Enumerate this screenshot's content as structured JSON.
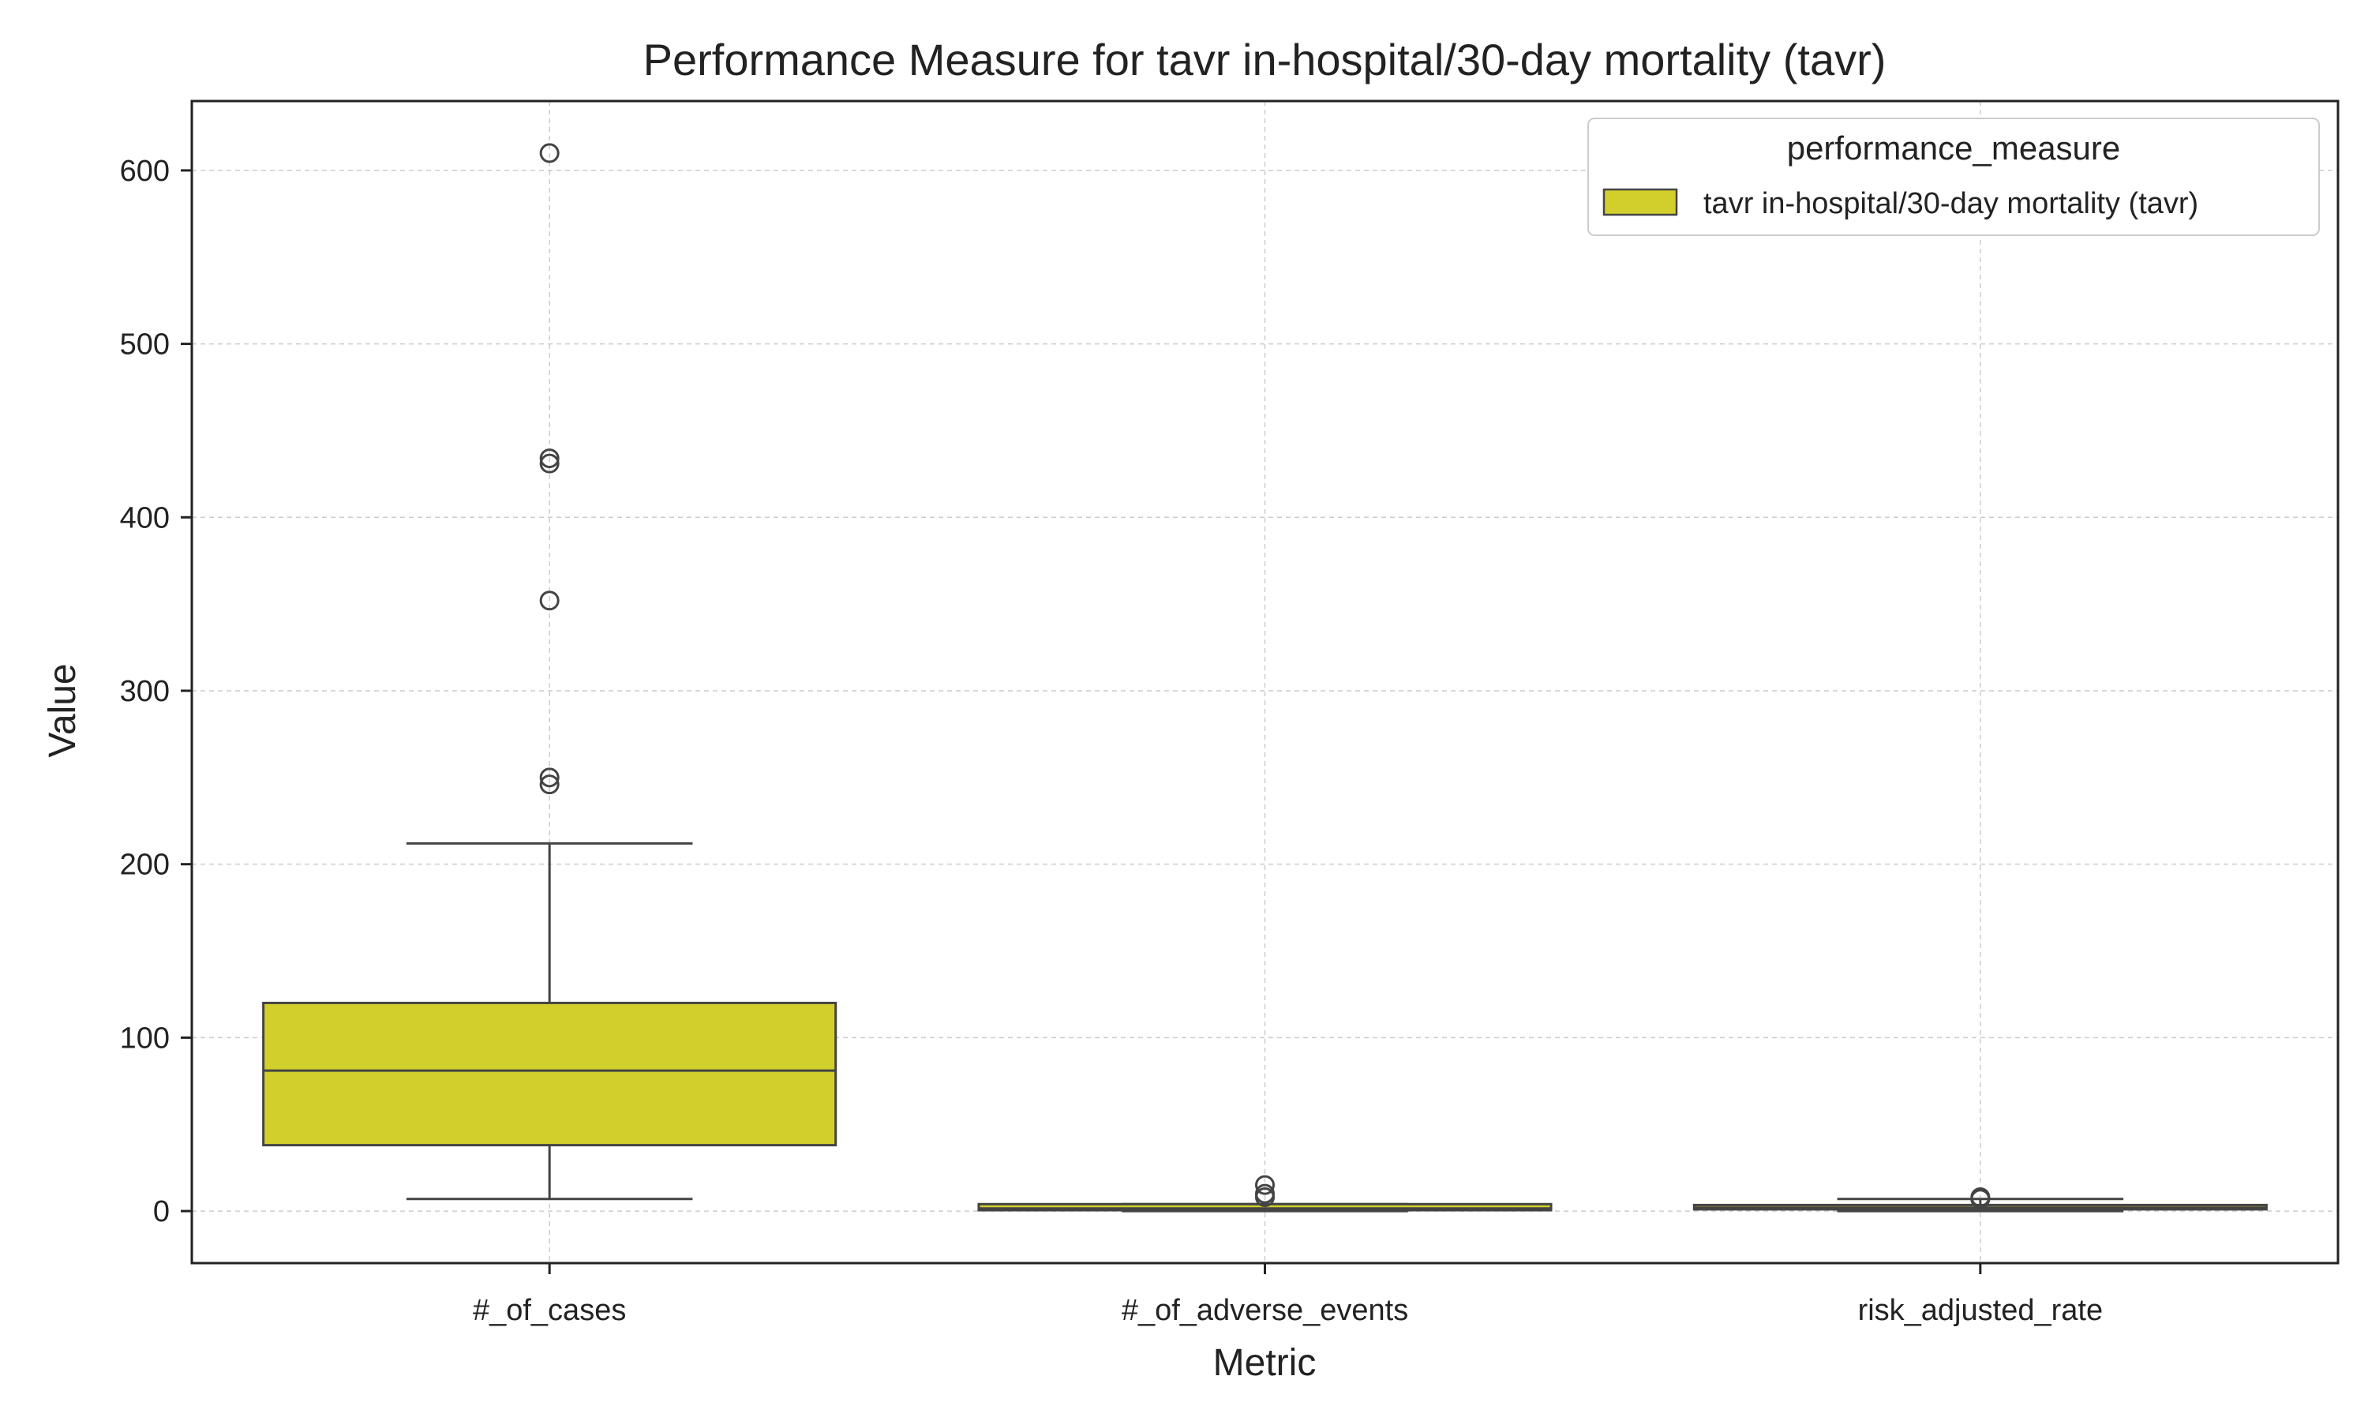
{
  "chart_data": {
    "type": "box",
    "title": "Performance Measure for tavr in-hospital/30-day mortality (tavr)",
    "xlabel": "Metric",
    "ylabel": "Value",
    "categories": [
      "#_of_cases",
      "#_of_adverse_events",
      "risk_adjusted_rate"
    ],
    "ylim": [
      -30,
      640
    ],
    "yticks": [
      0,
      100,
      200,
      300,
      400,
      500,
      600
    ],
    "grid": true,
    "legend": {
      "title": "performance_measure",
      "position": "top-right",
      "entries": [
        "tavr in-hospital/30-day mortality (tavr)"
      ]
    },
    "series": [
      {
        "name": "tavr in-hospital/30-day mortality (tavr)",
        "color": "#d2cf2c",
        "boxes": [
          {
            "category": "#_of_cases",
            "whisker_low": 7,
            "q1": 38,
            "median": 81,
            "q3": 120,
            "whisker_high": 212,
            "outliers": [
              246,
              250,
              352,
              431,
              434,
              610
            ]
          },
          {
            "category": "#_of_adverse_events",
            "whisker_low": 0,
            "q1": 0.5,
            "median": 1.5,
            "q3": 4,
            "whisker_high": 4,
            "outliers": [
              8,
              10,
              15
            ]
          },
          {
            "category": "risk_adjusted_rate",
            "whisker_low": 0,
            "q1": 1,
            "median": 2,
            "q3": 3.5,
            "whisker_high": 7,
            "outliers": [
              7,
              8
            ]
          }
        ]
      }
    ]
  }
}
